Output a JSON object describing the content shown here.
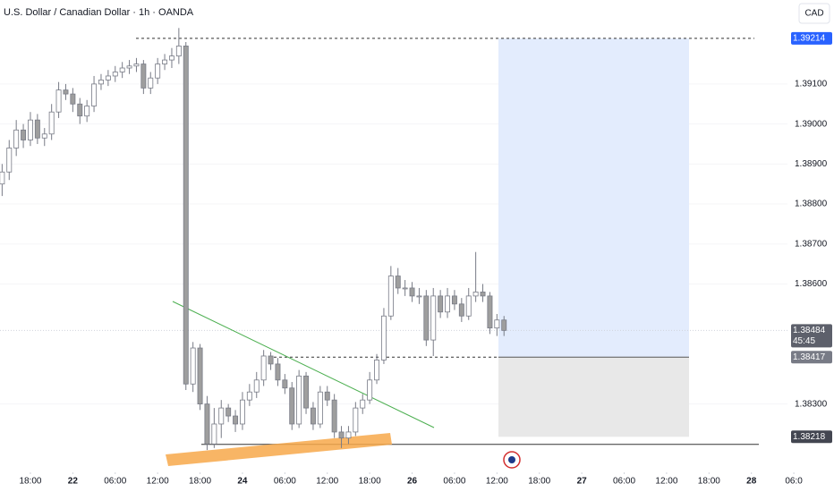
{
  "chart_data": {
    "type": "candlestick",
    "title": "U.S. Dollar / Canadian Dollar · 1h · OANDA",
    "currency": "CAD",
    "open": [
      1.3885,
      1.3888,
      1.3894,
      1.38985,
      1.3896,
      1.3901,
      1.38965,
      1.38975,
      1.3903,
      1.39085,
      1.39075,
      1.3905,
      1.3902,
      1.39045,
      1.391,
      1.3911,
      1.3912,
      1.3913,
      1.3914,
      1.39145,
      1.3915,
      1.3909,
      1.39115,
      1.3915,
      1.3916,
      1.3917,
      1.39195,
      1.3835,
      1.3844,
      1.383,
      1.382,
      1.3825,
      1.3829,
      1.3827,
      1.3825,
      1.3831,
      1.3833,
      1.3836,
      1.3842,
      1.384,
      1.3836,
      1.3834,
      1.3825,
      1.3837,
      1.3829,
      1.3825,
      1.3833,
      1.3831,
      1.3823,
      1.38215,
      1.3823,
      1.3829,
      1.3831,
      1.3836,
      1.3841,
      1.3852,
      1.3862,
      1.3859,
      1.3859,
      1.3857,
      1.3857,
      1.3846,
      1.3857,
      1.3853,
      1.3857,
      1.3855,
      1.3852,
      1.3857,
      1.3858,
      1.3857,
      1.3849,
      1.3851
    ],
    "high": [
      1.389,
      1.3896,
      1.3901,
      1.39,
      1.3903,
      1.39025,
      1.3899,
      1.3905,
      1.39105,
      1.391,
      1.3909,
      1.39065,
      1.3906,
      1.3912,
      1.39125,
      1.39135,
      1.39145,
      1.39155,
      1.3916,
      1.39165,
      1.3916,
      1.3913,
      1.39165,
      1.39175,
      1.3919,
      1.3924,
      1.39205,
      1.38455,
      1.3845,
      1.3832,
      1.3829,
      1.3831,
      1.383,
      1.38285,
      1.3833,
      1.3835,
      1.3838,
      1.38435,
      1.3843,
      1.38415,
      1.38375,
      1.38355,
      1.38385,
      1.3838,
      1.38305,
      1.38345,
      1.38345,
      1.38325,
      1.38245,
      1.38245,
      1.38305,
      1.38325,
      1.3838,
      1.38425,
      1.3854,
      1.38645,
      1.3864,
      1.3861,
      1.38605,
      1.3859,
      1.38585,
      1.3859,
      1.38585,
      1.3859,
      1.38585,
      1.38565,
      1.3859,
      1.3868,
      1.386,
      1.3858,
      1.38525,
      1.3852
    ],
    "low": [
      1.3882,
      1.3886,
      1.3892,
      1.3894,
      1.38945,
      1.3895,
      1.38945,
      1.3896,
      1.39015,
      1.3906,
      1.3903,
      1.39,
      1.39005,
      1.3903,
      1.39085,
      1.39095,
      1.39105,
      1.39115,
      1.39125,
      1.3913,
      1.39075,
      1.39075,
      1.391,
      1.39135,
      1.3914,
      1.3915,
      1.38335,
      1.3833,
      1.38285,
      1.38185,
      1.3819,
      1.38215,
      1.38255,
      1.3823,
      1.38235,
      1.38295,
      1.38315,
      1.38345,
      1.38385,
      1.38345,
      1.38325,
      1.38235,
      1.3824,
      1.38275,
      1.38235,
      1.3824,
      1.38295,
      1.38215,
      1.3819,
      1.382,
      1.3822,
      1.38275,
      1.383,
      1.3835,
      1.384,
      1.3851,
      1.38575,
      1.3857,
      1.38555,
      1.3855,
      1.38445,
      1.3842,
      1.38515,
      1.38515,
      1.38535,
      1.38505,
      1.3851,
      1.38555,
      1.38555,
      1.38475,
      1.3847,
      1.3847
    ],
    "close": [
      1.3888,
      1.3894,
      1.38985,
      1.3896,
      1.3901,
      1.38965,
      1.38975,
      1.3903,
      1.39085,
      1.39075,
      1.3905,
      1.3902,
      1.39045,
      1.391,
      1.3911,
      1.3912,
      1.3913,
      1.3914,
      1.39145,
      1.3915,
      1.3909,
      1.39115,
      1.3915,
      1.3916,
      1.3917,
      1.39195,
      1.3835,
      1.3844,
      1.383,
      1.382,
      1.3825,
      1.3829,
      1.3827,
      1.3825,
      1.3831,
      1.3833,
      1.3836,
      1.3842,
      1.384,
      1.3836,
      1.3834,
      1.3825,
      1.3837,
      1.3829,
      1.3825,
      1.3833,
      1.3831,
      1.3823,
      1.38215,
      1.3823,
      1.3829,
      1.3831,
      1.3836,
      1.3841,
      1.3852,
      1.3862,
      1.3859,
      1.3859,
      1.3857,
      1.3857,
      1.3846,
      1.3857,
      1.3853,
      1.3857,
      1.3855,
      1.3852,
      1.3857,
      1.3858,
      1.3857,
      1.3849,
      1.3851,
      1.38484
    ],
    "up_color": "#ffffff",
    "down_color": "#9e9e9e",
    "wick_color": "#787b86",
    "xlim": [
      -0.3,
      111.1
    ],
    "xticks": [
      {
        "value": 4,
        "label": "18:00"
      },
      {
        "value": 10,
        "label": "22"
      },
      {
        "value": 16,
        "label": "06:00"
      },
      {
        "value": 22,
        "label": "12:00"
      },
      {
        "value": 28,
        "label": "18:00"
      },
      {
        "value": 34,
        "label": "24"
      },
      {
        "value": 40,
        "label": "06:00"
      },
      {
        "value": 46,
        "label": "12:00"
      },
      {
        "value": 52,
        "label": "18:00"
      },
      {
        "value": 58,
        "label": "26"
      },
      {
        "value": 64,
        "label": "06:00"
      },
      {
        "value": 70,
        "label": "12:00"
      },
      {
        "value": 76,
        "label": "18:00"
      },
      {
        "value": 82,
        "label": "27"
      },
      {
        "value": 88,
        "label": "06:00"
      },
      {
        "value": 94,
        "label": "12:00"
      },
      {
        "value": 100,
        "label": "18:00"
      },
      {
        "value": 106,
        "label": "28"
      },
      {
        "value": 112,
        "label": "06:0"
      }
    ],
    "ylim": [
      1.3808,
      1.3931
    ],
    "yticks": [
      {
        "value": 1.391,
        "label": "1.39100"
      },
      {
        "value": 1.39,
        "label": "1.39000"
      },
      {
        "value": 1.389,
        "label": "1.38900"
      },
      {
        "value": 1.388,
        "label": "1.38800"
      },
      {
        "value": 1.387,
        "label": "1.38700"
      },
      {
        "value": 1.386,
        "label": "1.38600"
      },
      {
        "value": 1.383,
        "label": "1.38300"
      }
    ],
    "position": {
      "target": 1.39214,
      "entry": 1.38417,
      "stop": 1.38218,
      "profit_color": "#e3ecfd",
      "loss_color": "#e8e8e8"
    },
    "support_line": 1.38199,
    "price_tags": [
      {
        "price": 1.39214,
        "color": "#2962ff"
      },
      {
        "price": 1.38484,
        "color": "#5d606b",
        "countdown": "45:45"
      },
      {
        "price": 1.38417,
        "color": "#787b86"
      },
      {
        "price": 1.38218,
        "color": "#434651"
      }
    ]
  }
}
